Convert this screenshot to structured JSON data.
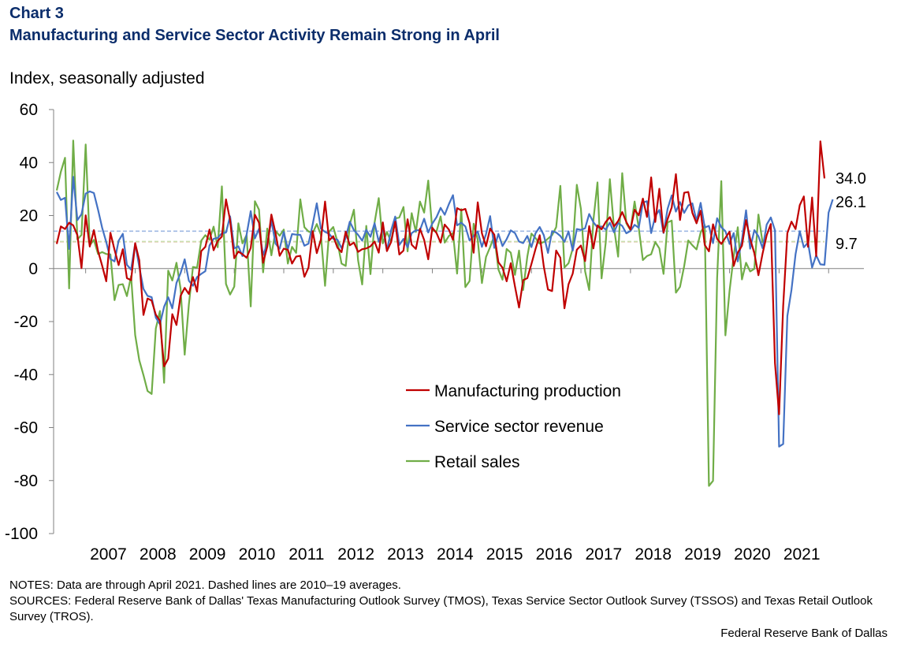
{
  "header": {
    "chart_number": "Chart 3",
    "title": "Manufacturing and Service Sector Activity Remain Strong in April",
    "ylabel": "Index, seasonally adjusted"
  },
  "notes": {
    "line1": "NOTES: Data are through April 2021. Dashed lines are 2010–19 averages.",
    "line2": "SOURCES: Federal Reserve Bank of Dallas' Texas Manufacturing Outlook Survey (TMOS), Texas Service Sector Outlook Survey (TSSOS) and Texas Retail Outlook Survey (TROS)."
  },
  "credit": "Federal Reserve Bank of Dallas",
  "colors": {
    "manufacturing": "#c00000",
    "service": "#4472c4",
    "retail": "#70ad47",
    "avg_service": "#9fb9e3",
    "avg_manufacturing": "#f2b0a8",
    "avg_retail": "#c9dfae"
  },
  "chart_data": {
    "type": "line",
    "title": "Manufacturing and Service Sector Activity Remain Strong in April",
    "ylabel": "Index, seasonally adjusted",
    "xlabel": "",
    "ylim": [
      -100,
      60
    ],
    "yticks": [
      60,
      40,
      20,
      0,
      -20,
      -40,
      -60,
      -80,
      -100
    ],
    "xtick_labels": [
      "2007",
      "2008",
      "2009",
      "2010",
      "2011",
      "2012",
      "2013",
      "2014",
      "2015",
      "2016",
      "2017",
      "2018",
      "2019",
      "2020",
      "2021"
    ],
    "x_start": "2006-06",
    "frequency": "monthly",
    "legend_position": "lower-center",
    "series": [
      {
        "name": "Manufacturing production",
        "color": "#c00000",
        "end_label": "34.0",
        "average_2010_2019": 10.1,
        "values": [
          9.3,
          15.9,
          14.9,
          17.3,
          16.3,
          12.6,
          0.2,
          20.1,
          8.3,
          14.5,
          6.6,
          1.1,
          -4.8,
          13.5,
          7.1,
          1.3,
          7.3,
          -3.6,
          -4.4,
          9.6,
          3.1,
          -17.5,
          -11.3,
          -12.1,
          -17.4,
          -19.7,
          -36.9,
          -34.0,
          -17.2,
          -21.3,
          -10.3,
          -7.3,
          -9.6,
          -3.2,
          -8.7,
          6.6,
          8.2,
          14.7,
          6.9,
          10.4,
          12.1,
          26.1,
          18.3,
          3.9,
          6.4,
          5.4,
          4.1,
          7.8,
          20.3,
          17.3,
          2.2,
          8.3,
          20.4,
          13.5,
          4.8,
          7.5,
          7.1,
          1.9,
          4.5,
          4.8,
          -3.1,
          0.4,
          14.1,
          5.8,
          10.9,
          25.3,
          10.6,
          12.2,
          7.9,
          6.2,
          13.9,
          8.8,
          9.8,
          6.3,
          7.3,
          7.6,
          8.4,
          10.2,
          6.0,
          17.4,
          6.6,
          10.0,
          17.7,
          5.3,
          6.8,
          18.6,
          9.0,
          7.4,
          15.0,
          10.8,
          3.5,
          15.4,
          13.4,
          9.8,
          16.6,
          14.7,
          10.8,
          22.8,
          22.0,
          22.5,
          17.2,
          6.0,
          25.0,
          13.3,
          8.4,
          15.1,
          12.8,
          2.4,
          0.3,
          -4.8,
          2.0,
          -6.7,
          -14.7,
          -4.4,
          -3.6,
          1.7,
          7.4,
          12.6,
          0.8,
          -7.9,
          -8.5,
          6.8,
          4.1,
          -15.0,
          -5.9,
          -1.9,
          7.1,
          8.7,
          2.8,
          16.0,
          7.6,
          16.3,
          14.8,
          17.6,
          19.4,
          15.9,
          17.9,
          21.3,
          17.6,
          14.7,
          22.2,
          20.1,
          26.4,
          19.5,
          34.4,
          17.6,
          30.1,
          13.6,
          18.7,
          23.1,
          35.6,
          18.3,
          28.6,
          28.9,
          21.0,
          17.1,
          21.8,
          8.9,
          6.5,
          16.7,
          11.2,
          9.3,
          11.6,
          13.9,
          1.0,
          6.0,
          8.6,
          18.3,
          11.2,
          5.8,
          -2.5,
          5.7,
          12.6,
          16.8,
          -35.7,
          -55.0,
          -14.1,
          13.4,
          17.7,
          14.9,
          23.9,
          27.2,
          8.2,
          26.8,
          4.7,
          48.0,
          34.0
        ]
      },
      {
        "name": "Service sector revenue",
        "color": "#4472c4",
        "end_label": "26.1",
        "average_2010_2019": 14.1,
        "values": [
          28.9,
          25.9,
          26.7,
          7.4,
          34.6,
          18.3,
          20.5,
          28.3,
          29.1,
          28.5,
          22.2,
          15.4,
          10.0,
          3.6,
          2.7,
          10.5,
          13.1,
          1.4,
          -0.4,
          9.4,
          0.7,
          -7.7,
          -10.3,
          -10.8,
          -18.5,
          -21.0,
          -14.4,
          -10.8,
          -15.0,
          -5.4,
          -1.7,
          3.5,
          -4.6,
          -6.5,
          -3.2,
          -2.0,
          -1.0,
          8.7,
          11.2,
          11.6,
          13.3,
          13.6,
          19.7,
          7.6,
          8.4,
          4.7,
          12.9,
          21.7,
          11.4,
          15.0,
          5.1,
          9.4,
          18.1,
          9.4,
          7.5,
          13.8,
          7.4,
          13.0,
          12.8,
          12.7,
          8.6,
          9.4,
          16.7,
          24.6,
          15.1,
          13.8,
          13.1,
          11.2,
          10.9,
          7.7,
          11.6,
          17.7,
          14.5,
          12.7,
          10.5,
          14.6,
          12.0,
          17.1,
          10.1,
          15.3,
          6.8,
          14.4,
          19.6,
          8.9,
          11.2,
          8.0,
          13.4,
          14.4,
          14.5,
          18.8,
          13.6,
          17.0,
          19.4,
          22.9,
          20.3,
          24.3,
          27.7,
          16.3,
          17.3,
          15.9,
          10.6,
          12.3,
          14.0,
          8.2,
          13.0,
          19.8,
          7.8,
          13.1,
          8.5,
          11.1,
          14.4,
          13.4,
          10.2,
          9.6,
          12.3,
          8.1,
          13.3,
          15.7,
          12.6,
          5.9,
          14.1,
          13.6,
          12.3,
          10.1,
          14.0,
          6.8,
          14.9,
          14.6,
          15.2,
          20.6,
          17.5,
          15.5,
          15.9,
          14.7,
          17.3,
          13.7,
          17.2,
          16.1,
          13.3,
          14.2,
          16.5,
          15.4,
          24.9,
          25.4,
          13.4,
          19.8,
          22.1,
          13.4,
          22.6,
          27.6,
          21.5,
          25.1,
          21.0,
          23.8,
          24.6,
          18.0,
          24.8,
          15.5,
          16.1,
          9.6,
          19.0,
          15.6,
          14.1,
          9.3,
          13.4,
          2.7,
          10.8,
          22.0,
          7.5,
          14.5,
          12.2,
          7.7,
          16.6,
          19.3,
          14.4,
          -67.2,
          -66.2,
          -17.9,
          -8.1,
          5.4,
          14.1,
          8.0,
          9.8,
          0.4,
          5.0,
          1.6,
          1.4,
          21.1,
          26.1
        ]
      },
      {
        "name": "Retail sales",
        "color": "#70ad47",
        "end_label": "9.7",
        "average_2010_2019": 10.2,
        "values": [
          29.5,
          36.5,
          41.8,
          -7.5,
          48.3,
          11.0,
          12.7,
          46.8,
          8.8,
          10.8,
          5.5,
          6.2,
          5.5,
          5.3,
          -11.9,
          -6.2,
          -5.9,
          -10.4,
          -2.8,
          -25.1,
          -34.6,
          -40.2,
          -46.2,
          -47.3,
          -22.6,
          -16.0,
          -43.1,
          -0.8,
          -4.5,
          2.2,
          -7.6,
          -32.5,
          -13.6,
          0.6,
          0.3,
          10.5,
          12.6,
          10.9,
          15.8,
          8.0,
          31.0,
          -5.8,
          -9.8,
          -6.8,
          17.1,
          9.5,
          12.7,
          -14.3,
          25.4,
          22.2,
          -1.4,
          15.1,
          5.0,
          14.2,
          12.4,
          14.7,
          1.9,
          8.2,
          5.9,
          26.1,
          15.6,
          14.0,
          13.4,
          16.8,
          12.8,
          -6.5,
          13.9,
          15.7,
          10.1,
          1.9,
          1.0,
          16.7,
          22.2,
          3.1,
          -6.0,
          16.1,
          -2.1,
          17.3,
          26.6,
          9.5,
          13.8,
          10.1,
          18.9,
          19.3,
          23.2,
          6.5,
          20.9,
          13.8,
          25.3,
          21.1,
          33.2,
          14.4,
          14.0,
          19.7,
          9.8,
          12.3,
          13.4,
          -1.9,
          22.4,
          -7.0,
          -4.7,
          16.9,
          10.9,
          -5.5,
          4.4,
          8.1,
          12.4,
          -0.3,
          -4.2,
          7.4,
          6.0,
          -2.4,
          6.8,
          -8.1,
          4.5,
          13.2,
          11.5,
          9.4,
          10.0,
          11.3,
          12.6,
          15.6,
          31.2,
          0.4,
          2.0,
          7.5,
          31.6,
          22.5,
          -1.0,
          -8.1,
          18.2,
          32.5,
          -3.7,
          9.9,
          33.7,
          15.6,
          4.5,
          36.0,
          17.1,
          14.5,
          25.3,
          15.2,
          3.2,
          4.7,
          5.4,
          10.0,
          7.6,
          -2.0,
          17.4,
          18.1,
          -9.1,
          -6.9,
          0.9,
          10.6,
          8.8,
          7.2,
          13.6,
          16.4,
          -82.0,
          -80.1,
          -3.6,
          33.0,
          -25.2,
          -8.3,
          4.6,
          15.6,
          -4.1,
          2.2,
          -1.1,
          -0.1,
          20.4,
          9.7
        ]
      }
    ]
  }
}
